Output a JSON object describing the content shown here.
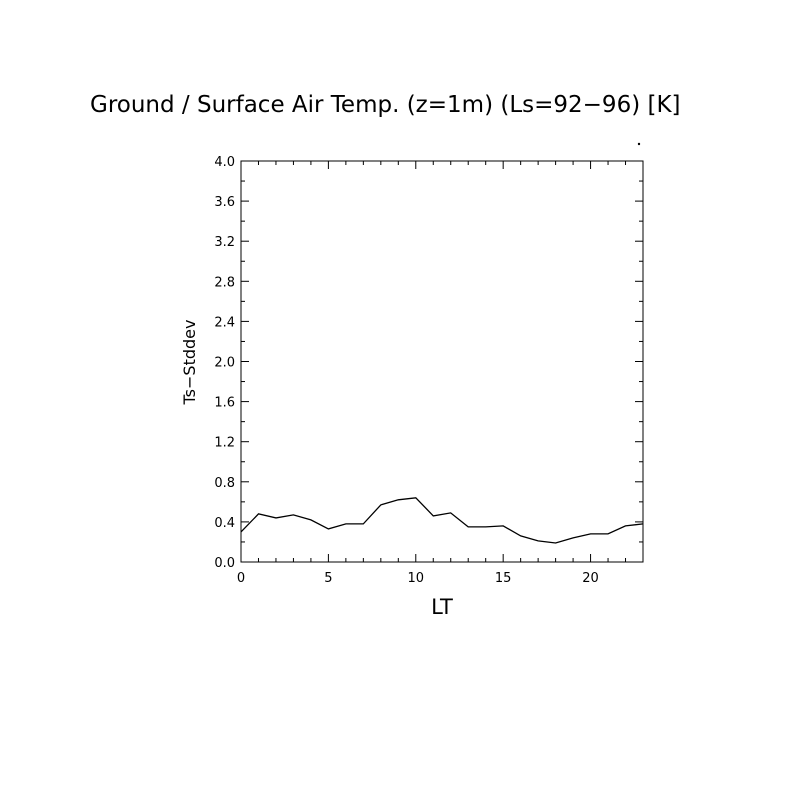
{
  "chart_data": {
    "type": "line",
    "title": "Ground / Surface Air Temp. (z=1m) (Ls=92−96) [K]",
    "xlabel": "LT",
    "ylabel": "Ts−Stddev",
    "xlim": [
      0,
      23
    ],
    "ylim": [
      0,
      4.0
    ],
    "x_ticks": [
      0,
      5,
      10,
      15,
      20
    ],
    "x_tick_labels": [
      "0",
      "5",
      "10",
      "15",
      "20"
    ],
    "y_ticks": [
      0,
      0.4,
      0.8,
      1.2,
      1.6,
      2.0,
      2.4,
      2.8,
      3.2,
      3.6,
      4.0
    ],
    "y_tick_labels": [
      "0.0",
      "0.4",
      "0.8",
      "1.2",
      "1.6",
      "2.0",
      "2.4",
      "2.8",
      "3.2",
      "3.6",
      "4.0"
    ],
    "grid": false,
    "series": [
      {
        "x": [
          0,
          1,
          2,
          3,
          4,
          5,
          6,
          7,
          8,
          9,
          10,
          11,
          12,
          13,
          14,
          15,
          16,
          17,
          18,
          19,
          20,
          21,
          22,
          23
        ],
        "values": [
          0.3,
          0.48,
          0.44,
          0.47,
          0.42,
          0.33,
          0.38,
          0.38,
          0.57,
          0.62,
          0.64,
          0.46,
          0.49,
          0.35,
          0.35,
          0.36,
          0.26,
          0.21,
          0.19,
          0.24,
          0.28,
          0.28,
          0.36,
          0.38
        ]
      }
    ]
  }
}
